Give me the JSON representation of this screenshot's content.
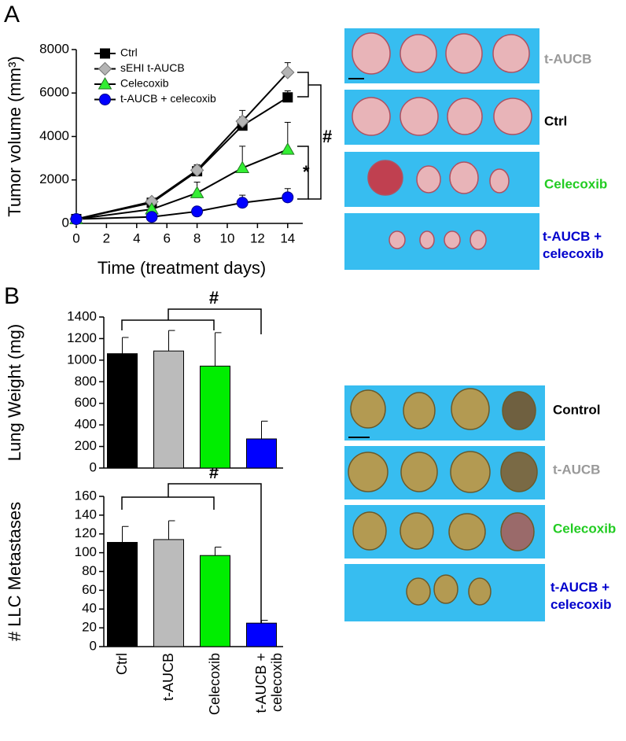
{
  "chart_data": [
    {
      "type": "line",
      "x_label": "Time (treatment days)",
      "y_label": "Tumor volume (mm³)",
      "x": [
        0,
        5,
        8,
        11,
        14
      ],
      "xlim": [
        0,
        15
      ],
      "xticks": [
        0,
        2,
        4,
        6,
        8,
        10,
        12,
        14
      ],
      "ylim": [
        0,
        8000
      ],
      "yticks": [
        0,
        2000,
        4000,
        6000,
        8000
      ],
      "series": [
        {
          "name": "Ctrl",
          "color": "#000000",
          "marker": "square",
          "values": [
            200,
            950,
            2400,
            4500,
            5800
          ],
          "errors": [
            50,
            100,
            250,
            400,
            300
          ]
        },
        {
          "name": "sEHI t-AUCB",
          "color": "#b4b4b4",
          "marker": "diamond",
          "values": [
            200,
            1000,
            2450,
            4700,
            6950
          ],
          "errors": [
            50,
            100,
            250,
            500,
            450
          ]
        },
        {
          "name": "Celecoxib",
          "color": "#33ee33",
          "marker": "triangle",
          "values": [
            200,
            650,
            1400,
            2550,
            3400
          ],
          "errors": [
            50,
            150,
            500,
            1000,
            1250
          ]
        },
        {
          "name": "t-AUCB + celecoxib",
          "color": "#0000ff",
          "marker": "circle",
          "values": [
            200,
            300,
            550,
            950,
            1200
          ],
          "errors": [
            50,
            100,
            150,
            350,
            400
          ]
        }
      ],
      "annotations": [
        "#",
        "*"
      ]
    },
    {
      "type": "bar",
      "y_label": "Lung Weight (mg)",
      "ylim": [
        0,
        1400
      ],
      "yticks": [
        0,
        200,
        400,
        600,
        800,
        1000,
        1200,
        1400
      ],
      "values": [
        1060,
        1085,
        945,
        270
      ],
      "errors": [
        150,
        190,
        310,
        165
      ],
      "colors": [
        "#000000",
        "#bbbbbb",
        "#00ee00",
        "#0000ff"
      ],
      "annotations": [
        "#"
      ]
    },
    {
      "type": "bar",
      "y_label": "# LLC Metastases",
      "ylim": [
        0,
        160
      ],
      "yticks": [
        0,
        20,
        40,
        60,
        80,
        100,
        120,
        140,
        160
      ],
      "categories": [
        "Ctrl",
        "t-AUCB",
        "Celecoxib",
        "t-AUCB + celecoxib"
      ],
      "values": [
        111,
        114,
        97,
        25
      ],
      "errors": [
        17,
        20,
        9,
        3
      ],
      "colors": [
        "#000000",
        "#bbbbbb",
        "#00ee00",
        "#0000ff"
      ],
      "annotations": [
        "#"
      ]
    }
  ],
  "panel_labels": [
    "A",
    "B"
  ],
  "photos": {
    "tumors": [
      "t-AUCB",
      "Ctrl",
      "Celecoxib",
      "t-AUCB + celecoxib"
    ],
    "lungs": [
      "Control",
      "t-AUCB",
      "Celecoxib",
      "t-AUCB + celecoxib"
    ]
  }
}
